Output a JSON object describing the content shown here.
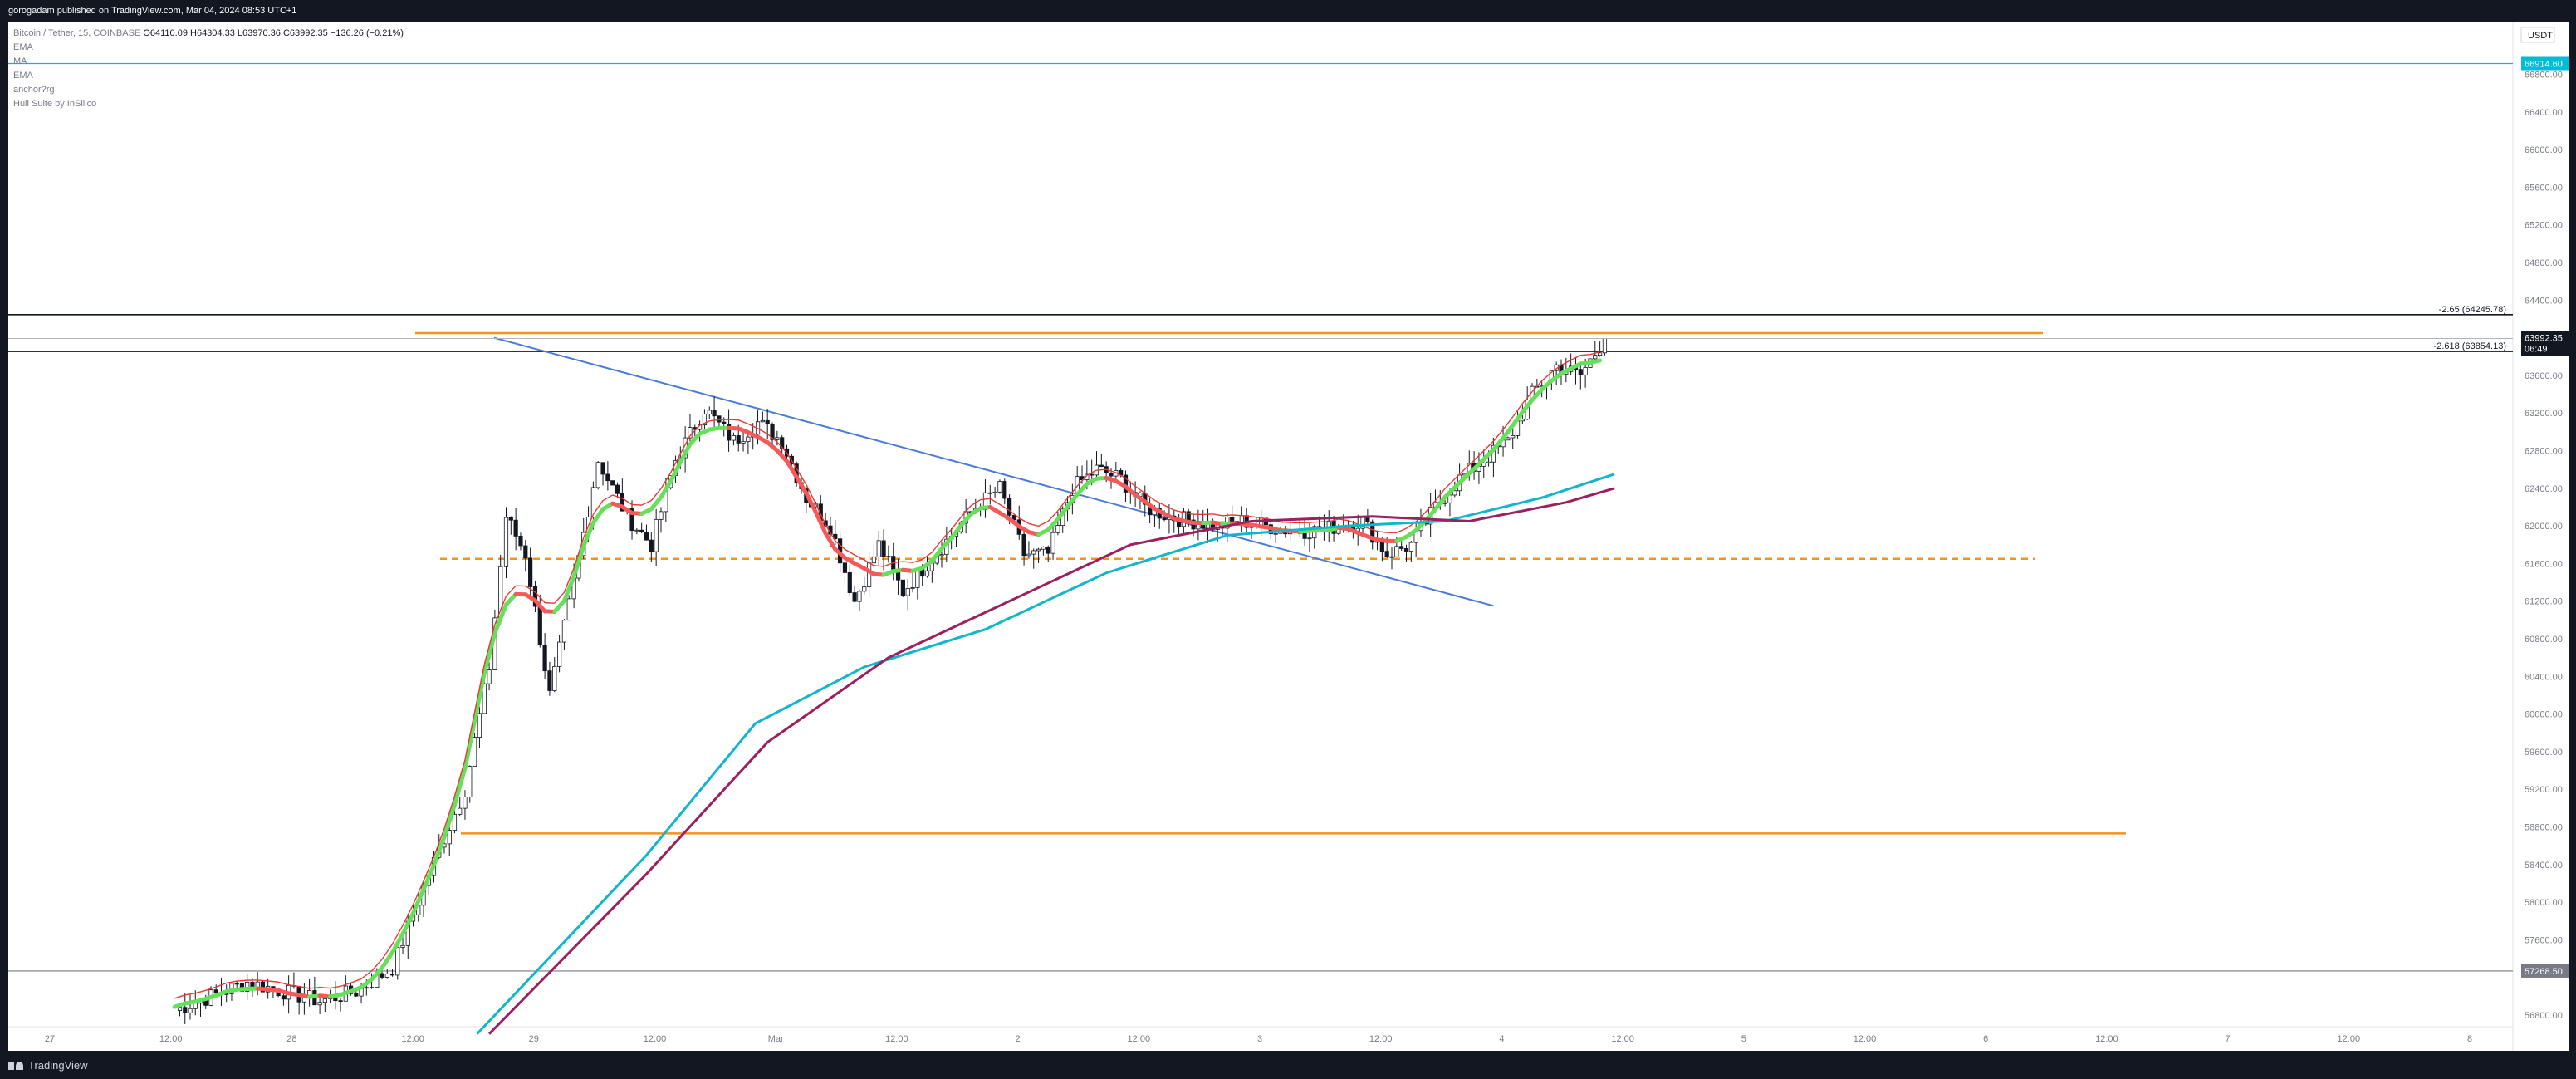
{
  "header": {
    "publisher": "gorogadam published on TradingView.com, Mar 04, 2024 08:53 UTC+1"
  },
  "legend": {
    "symbol": "Bitcoin / Tether, 15, COINBASE",
    "ohlc": "O64110.09  H64304.33  L63970.36  C63992.35  −136.26 (−0.21%)",
    "indicators": [
      "EMA",
      "MA",
      "EMA",
      "anchor?rg",
      "Hull Suite by InSilico"
    ]
  },
  "currency": "USDT",
  "price_axis": {
    "labels": [
      "66800.00",
      "66400.00",
      "66000.00",
      "65600.00",
      "65200.00",
      "64800.00",
      "64400.00",
      "63600.00",
      "63200.00",
      "62800.00",
      "62400.00",
      "62000.00",
      "61600.00",
      "61200.00",
      "60800.00",
      "60400.00",
      "60000.00",
      "59600.00",
      "59200.00",
      "58800.00",
      "58400.00",
      "58000.00",
      "57600.00",
      "56800.00"
    ],
    "current_price": "63992.35",
    "countdown": "06:49",
    "top_tag": "66914.60",
    "bottom_tag": "57268.50"
  },
  "time_axis": {
    "labels": [
      "27",
      "12:00",
      "28",
      "12:00",
      "29",
      "12:00",
      "Mar",
      "12:00",
      "2",
      "12:00",
      "3",
      "12:00",
      "4",
      "12:00",
      "5",
      "12:00",
      "6",
      "12:00",
      "7",
      "12:00",
      "8"
    ]
  },
  "annotations": {
    "fib_top": "-2.65 (64245.78)",
    "fib_mid": "-2.618 (63854.13)"
  },
  "footer": {
    "brand": "TradingView"
  },
  "colors": {
    "accent_line": "#00bcd4",
    "orange": "#f7931a",
    "trend_blue": "#4a7bd6",
    "ema_teal": "#11b5cc",
    "ma_maroon": "#9c1f5e",
    "hull_green": "#66e05a",
    "hull_red": "#f45a5a"
  },
  "chart_data": {
    "type": "line",
    "title": "",
    "x_labels": [
      "27",
      "12:00",
      "28",
      "12:00",
      "29",
      "12:00",
      "Mar",
      "12:00",
      "2",
      "12:00",
      "3",
      "12:00",
      "4",
      "12:00",
      "5",
      "12:00",
      "6",
      "12:00",
      "7",
      "12:00",
      "8"
    ],
    "x_range_days": [
      0,
      10
    ],
    "ylim": [
      56600,
      67200
    ],
    "y_scale": "linear",
    "grid": false,
    "legend_position": "top-left",
    "close_path": [
      [
        0.55,
        56850
      ],
      [
        0.7,
        57000
      ],
      [
        0.85,
        57150
      ],
      [
        1.0,
        57050
      ],
      [
        1.15,
        56950
      ],
      [
        1.3,
        57050
      ],
      [
        1.45,
        57300
      ],
      [
        1.6,
        58300
      ],
      [
        1.75,
        59200
      ],
      [
        1.85,
        60500
      ],
      [
        1.92,
        62100
      ],
      [
        2.0,
        61700
      ],
      [
        2.1,
        60200
      ],
      [
        2.2,
        61400
      ],
      [
        2.3,
        62700
      ],
      [
        2.42,
        62100
      ],
      [
        2.52,
        61800
      ],
      [
        2.62,
        62700
      ],
      [
        2.74,
        63250
      ],
      [
        2.86,
        62900
      ],
      [
        2.96,
        63100
      ],
      [
        3.06,
        62900
      ],
      [
        3.16,
        62300
      ],
      [
        3.26,
        62000
      ],
      [
        3.36,
        61200
      ],
      [
        3.46,
        61800
      ],
      [
        3.56,
        61300
      ],
      [
        3.66,
        61600
      ],
      [
        3.76,
        61900
      ],
      [
        3.86,
        62200
      ],
      [
        3.96,
        62400
      ],
      [
        4.06,
        61700
      ],
      [
        4.16,
        61700
      ],
      [
        4.26,
        62400
      ],
      [
        4.36,
        62600
      ],
      [
        4.46,
        62500
      ],
      [
        4.56,
        62200
      ],
      [
        4.66,
        62100
      ],
      [
        4.76,
        62050
      ],
      [
        4.86,
        62000
      ],
      [
        4.96,
        62050
      ],
      [
        5.06,
        62000
      ],
      [
        5.16,
        61950
      ],
      [
        5.26,
        61950
      ],
      [
        5.36,
        62000
      ],
      [
        5.46,
        62050
      ],
      [
        5.56,
        61700
      ],
      [
        5.66,
        61800
      ],
      [
        5.76,
        62200
      ],
      [
        5.86,
        62500
      ],
      [
        5.96,
        62700
      ],
      [
        6.06,
        62900
      ],
      [
        6.16,
        63400
      ],
      [
        6.26,
        63700
      ],
      [
        6.36,
        63600
      ],
      [
        6.46,
        63992
      ]
    ],
    "series": [
      {
        "name": "EMA",
        "color": "#11b5cc",
        "x": [
          1.8,
          2.5,
          2.95,
          3.4,
          3.9,
          4.4,
          4.9,
          5.4,
          5.8,
          6.2,
          6.5
        ],
        "values": [
          56600,
          58500,
          59900,
          60500,
          60900,
          61500,
          61900,
          62000,
          62050,
          62300,
          62550
        ]
      },
      {
        "name": "MA",
        "color": "#9c1f5e",
        "x": [
          1.85,
          2.5,
          3.0,
          3.5,
          4.0,
          4.5,
          5.0,
          5.5,
          5.9,
          6.3,
          6.5
        ],
        "values": [
          56600,
          58300,
          59700,
          60600,
          61200,
          61800,
          62050,
          62100,
          62050,
          62250,
          62400
        ]
      }
    ],
    "levels": [
      {
        "value": 64245.78,
        "color": "#131722",
        "label": "-2.65 (64245.78)"
      },
      {
        "value": 63854.13,
        "color": "#131722",
        "label": "-2.618 (63854.13)"
      },
      {
        "value": 64050,
        "color": "#f7931a"
      },
      {
        "value": 61650,
        "color": "#f7931a",
        "style": "dashed"
      },
      {
        "value": 58730,
        "color": "#f7931a"
      },
      {
        "value": 66914.6,
        "color": "#00bcd4",
        "label": "66914.60"
      },
      {
        "value": 57268.5,
        "color": "#787b86",
        "label": "57268.50"
      }
    ],
    "trendline": {
      "from": [
        1.87,
        64000
      ],
      "to": [
        6.0,
        61150
      ],
      "color": "#4a7bd6"
    }
  }
}
